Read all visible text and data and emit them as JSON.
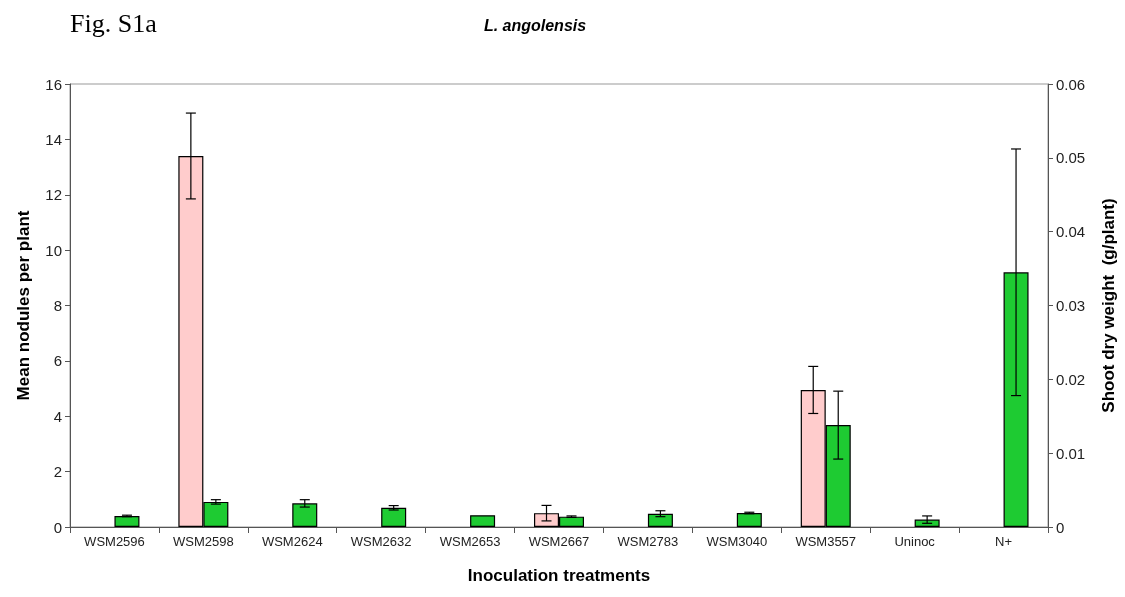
{
  "chart_data": {
    "type": "bar",
    "title": "L. angolensis",
    "annotations": [
      "Fig. S1a"
    ],
    "xlabel": "Inoculation treatments",
    "ylabel": "Mean nodules per plant",
    "y2label": "Shoot dry weight  (g/plant)",
    "categories": [
      "WSM2596",
      "WSM2598",
      "WSM2624",
      "WSM2632",
      "WSM2653",
      "WSM2667",
      "WSM2783",
      "WSM3040",
      "WSM3557",
      "Uninoc",
      "N+"
    ],
    "series": [
      {
        "color": "#ffcccc",
        "values": [
          null,
          13.4,
          null,
          null,
          null,
          0.5,
          null,
          null,
          4.95,
          null,
          null
        ],
        "errors": [
          null,
          1.55,
          null,
          null,
          null,
          0.28,
          null,
          null,
          0.85,
          null,
          null
        ]
      },
      {
        "color": "#1ecb32",
        "axis": "y2",
        "values": [
          0.0015,
          0.0034,
          0.0032,
          0.0026,
          0.0016,
          0.0014,
          0.0018,
          0.0019,
          0.0138,
          0.001,
          0.0345
        ],
        "errors": [
          0.0001,
          0.0003,
          0.0005,
          0.0003,
          null,
          0.0001,
          0.0004,
          0.0001,
          0.0046,
          0.0005,
          0.0167
        ]
      }
    ],
    "ylim": [
      0,
      16
    ],
    "yticks": [
      0,
      2,
      4,
      6,
      8,
      10,
      12,
      14,
      16
    ],
    "y2lim": [
      0,
      0.06
    ],
    "y2ticks": [
      0,
      0.01,
      0.02,
      0.03,
      0.04,
      0.05,
      0.06
    ],
    "grid": false,
    "legend": false
  }
}
